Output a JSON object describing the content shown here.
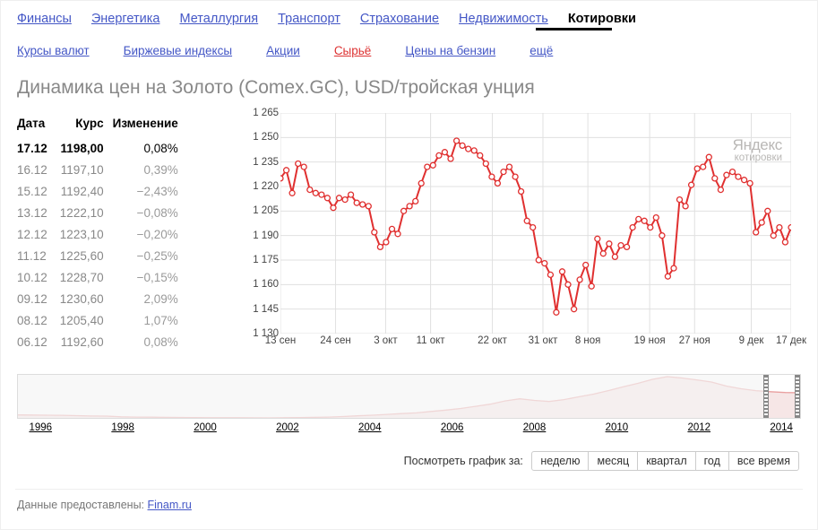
{
  "topnav": {
    "items": [
      "Финансы",
      "Энергетика",
      "Металлургия",
      "Транспорт",
      "Страхование",
      "Недвижимость",
      "Котировки"
    ],
    "active_index": 6
  },
  "subnav": {
    "items": [
      "Курсы валют",
      "Биржевые индексы",
      "Акции",
      "Сырьё",
      "Цены на бензин"
    ],
    "active_index": 3,
    "more_label": "ещё"
  },
  "heading": "Динамика цен на Золото (Comex.GC), USD/тройская унция",
  "table": {
    "columns": [
      "Дата",
      "Курс",
      "Изменение"
    ],
    "rows": [
      [
        "17.12",
        "1198,00",
        "0,08%"
      ],
      [
        "16.12",
        "1197,10",
        "0,39%"
      ],
      [
        "15.12",
        "1192,40",
        "−2,43%"
      ],
      [
        "13.12",
        "1222,10",
        "−0,08%"
      ],
      [
        "12.12",
        "1223,10",
        "−0,20%"
      ],
      [
        "11.12",
        "1225,60",
        "−0,25%"
      ],
      [
        "10.12",
        "1228,70",
        "−0,15%"
      ],
      [
        "09.12",
        "1230,60",
        "2,09%"
      ],
      [
        "08.12",
        "1205,40",
        "1,07%"
      ],
      [
        "06.12",
        "1192,60",
        "0,08%"
      ]
    ]
  },
  "chart": {
    "type": "line",
    "line_color": "#e03030",
    "line_width": 2,
    "marker_fill": "#ffffff",
    "marker_stroke": "#e03030",
    "marker_radius": 3,
    "grid_color": "#e0e0e0",
    "background_color": "#ffffff",
    "ylim": [
      1130,
      1265
    ],
    "ytick_step": 15,
    "yticks": [
      1130,
      1145,
      1160,
      1175,
      1190,
      1205,
      1220,
      1235,
      1250,
      1265
    ],
    "x_labels": [
      "13 сен",
      "24 сен",
      "3 окт",
      "11 окт",
      "22 окт",
      "31 окт",
      "8 ноя",
      "19 ноя",
      "27 ноя",
      "9 дек",
      "17 дек"
    ],
    "x_positions": [
      0,
      0.108,
      0.206,
      0.294,
      0.415,
      0.514,
      0.602,
      0.723,
      0.811,
      0.922,
      1.0
    ],
    "values": [
      1225,
      1230,
      1216,
      1234,
      1232,
      1218,
      1216,
      1215,
      1213,
      1207,
      1213,
      1212,
      1215,
      1210,
      1209,
      1208,
      1192,
      1183,
      1186,
      1194,
      1191,
      1205,
      1208,
      1211,
      1222,
      1232,
      1233,
      1239,
      1241,
      1237,
      1248,
      1245,
      1243,
      1242,
      1239,
      1234,
      1226,
      1222,
      1229,
      1232,
      1226,
      1217,
      1199,
      1195,
      1175,
      1173,
      1166,
      1143,
      1168,
      1160,
      1145,
      1163,
      1172,
      1159,
      1188,
      1179,
      1185,
      1177,
      1184,
      1183,
      1195,
      1200,
      1199,
      1195,
      1201,
      1190,
      1165,
      1170,
      1212,
      1208,
      1221,
      1231,
      1232,
      1238,
      1225,
      1218,
      1227,
      1229,
      1226,
      1224,
      1222,
      1192,
      1198,
      1205,
      1190,
      1195,
      1186,
      1195
    ],
    "watermark_line1": "Яндекс",
    "watermark_line2": "котировки"
  },
  "minichart": {
    "x_labels": [
      "1996",
      "1998",
      "2000",
      "2002",
      "2004",
      "2006",
      "2008",
      "2010",
      "2012",
      "2014"
    ],
    "x_positions": [
      0.03,
      0.135,
      0.24,
      0.345,
      0.45,
      0.555,
      0.66,
      0.765,
      0.87,
      0.975
    ],
    "line_color": "#e9a0a0",
    "fill_color": "#f6e6e6",
    "selection_start": 0.957,
    "selection_end": 1.0,
    "values": [
      380,
      375,
      370,
      368,
      352,
      340,
      335,
      310,
      300,
      295,
      290,
      285,
      280,
      275,
      278,
      276,
      272,
      270,
      275,
      280,
      290,
      300,
      320,
      345,
      370,
      400,
      430,
      455,
      510,
      560,
      620,
      700,
      780,
      900,
      980,
      920,
      880,
      950,
      1050,
      1150,
      1280,
      1420,
      1550,
      1700,
      1800,
      1750,
      1680,
      1600,
      1450,
      1350,
      1280,
      1240,
      1210,
      1200
    ]
  },
  "period": {
    "label": "Посмотреть график за:",
    "buttons": [
      "неделю",
      "месяц",
      "квартал",
      "год",
      "все время"
    ]
  },
  "footer": {
    "text": "Данные предоставлены:",
    "link_label": "Finam.ru"
  }
}
